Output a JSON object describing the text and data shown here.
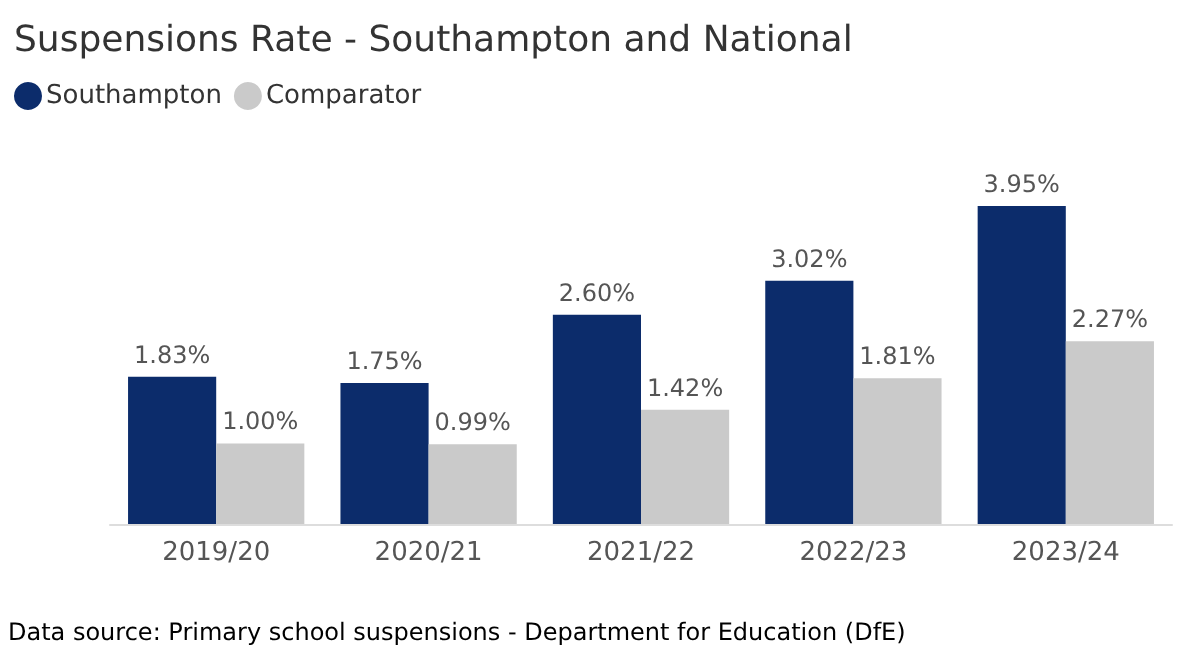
{
  "chart_data": {
    "type": "bar",
    "title": "Suspensions Rate - Southampton and National",
    "categories": [
      "2019/20",
      "2020/21",
      "2021/22",
      "2022/23",
      "2023/24"
    ],
    "series": [
      {
        "name": "Southampton",
        "color": "#0c2c6b",
        "values": [
          1.83,
          1.75,
          2.6,
          3.02,
          3.95
        ],
        "value_labels": [
          "1.83%",
          "1.75%",
          "2.60%",
          "3.02%",
          "3.95%"
        ]
      },
      {
        "name": "Comparator",
        "color": "#cacaca",
        "values": [
          1.0,
          0.99,
          1.42,
          1.81,
          2.27
        ],
        "value_labels": [
          "1.00%",
          "0.99%",
          "1.42%",
          "1.81%",
          "2.27%"
        ]
      }
    ],
    "legend": "top left",
    "tick_labels": "x",
    "annotations": [
      "Data source: Primary school suspensions - Department for Education (DfE)"
    ]
  }
}
